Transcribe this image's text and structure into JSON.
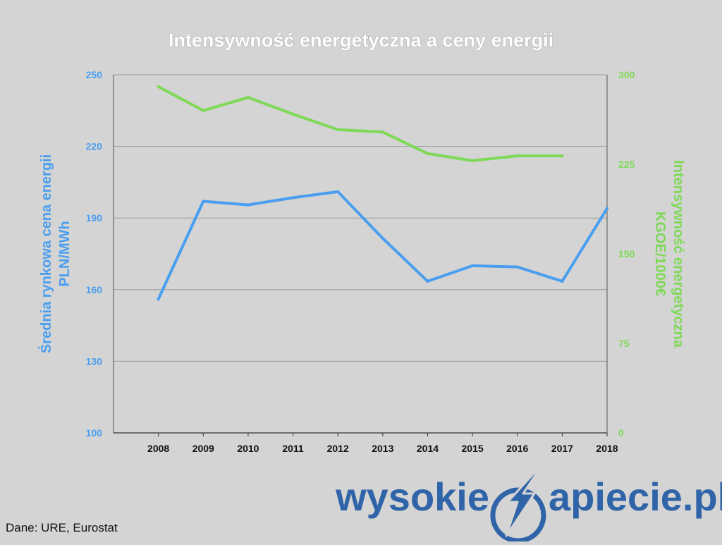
{
  "chart_data": {
    "type": "line",
    "title": "Intensywność energetyczna a ceny energii",
    "x": [
      "2008",
      "2009",
      "2010",
      "2011",
      "2012",
      "2013",
      "2014",
      "2015",
      "2016",
      "2017",
      "2018"
    ],
    "left_axis": {
      "label_line1": "Średnia rynkowa cena energii",
      "label_line2": "PLN/MWh",
      "ylim": [
        100,
        250
      ],
      "ticks": [
        "100",
        "130",
        "160",
        "190",
        "220",
        "250"
      ],
      "color": "#4a9ef0"
    },
    "right_axis": {
      "label_line1": "Intensywność energetyczna",
      "label_line2": "KGOE/1000€",
      "ylim": [
        0,
        300
      ],
      "ticks": [
        "0",
        "75",
        "150",
        "225",
        "300"
      ],
      "color": "#7ed957"
    },
    "series": [
      {
        "axis": "left",
        "color": "#4a9ef0",
        "values": [
          156,
          197,
          195.5,
          198.5,
          201,
          181.5,
          163.5,
          170,
          169.5,
          163.5,
          194
        ]
      },
      {
        "axis": "right",
        "color": "#7ed957",
        "values": [
          290,
          270,
          281,
          267,
          254,
          252,
          234,
          228,
          232,
          232,
          null
        ]
      }
    ],
    "grid": true
  },
  "footer": {
    "source": "Dane: URE, Eurostat",
    "brand_left": "wysokie",
    "brand_right": "apiecie.pl",
    "brand_color": "#2f64a8"
  }
}
